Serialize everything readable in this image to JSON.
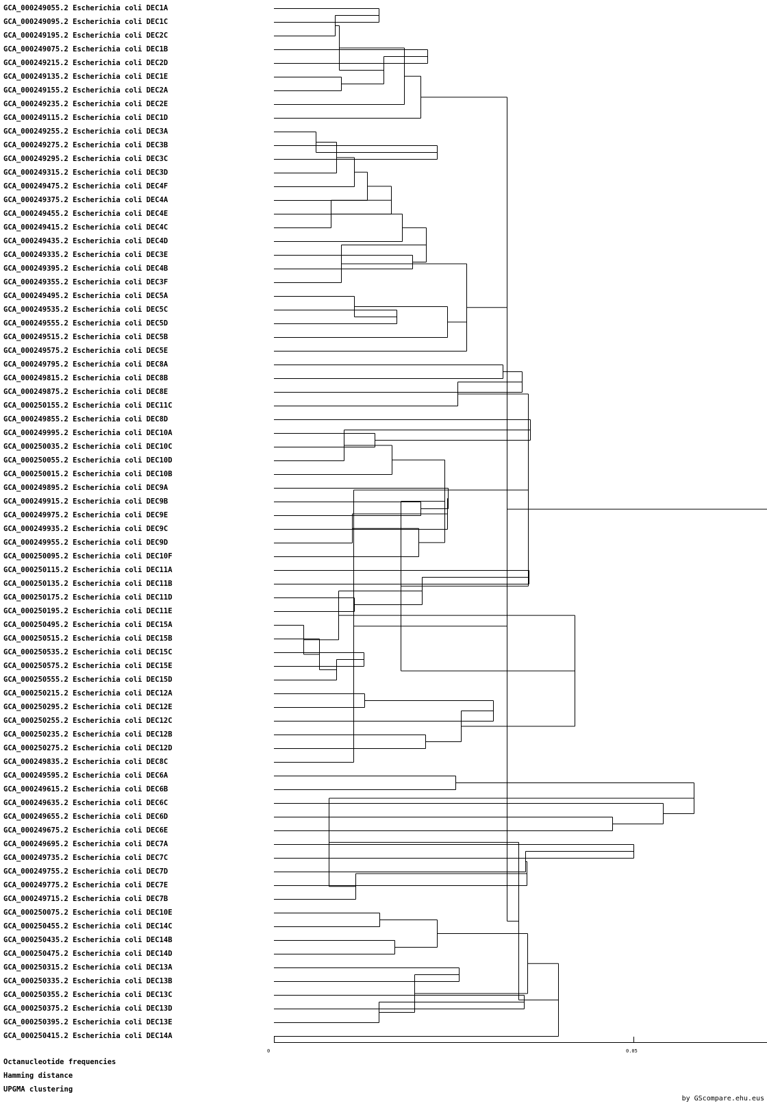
{
  "leaves": [
    "GCA_000249055.2 Escherichia coli DEC1A",
    "GCA_000249095.2 Escherichia coli DEC1C",
    "GCA_000249195.2 Escherichia coli DEC2C",
    "GCA_000249075.2 Escherichia coli DEC1B",
    "GCA_000249215.2 Escherichia coli DEC2D",
    "GCA_000249135.2 Escherichia coli DEC1E",
    "GCA_000249155.2 Escherichia coli DEC2A",
    "GCA_000249235.2 Escherichia coli DEC2E",
    "GCA_000249115.2 Escherichia coli DEC1D",
    "GCA_000249255.2 Escherichia coli DEC3A",
    "GCA_000249275.2 Escherichia coli DEC3B",
    "GCA_000249295.2 Escherichia coli DEC3C",
    "GCA_000249315.2 Escherichia coli DEC3D",
    "GCA_000249475.2 Escherichia coli DEC4F",
    "GCA_000249375.2 Escherichia coli DEC4A",
    "GCA_000249455.2 Escherichia coli DEC4E",
    "GCA_000249415.2 Escherichia coli DEC4C",
    "GCA_000249435.2 Escherichia coli DEC4D",
    "GCA_000249335.2 Escherichia coli DEC3E",
    "GCA_000249395.2 Escherichia coli DEC4B",
    "GCA_000249355.2 Escherichia coli DEC3F",
    "GCA_000249495.2 Escherichia coli DEC5A",
    "GCA_000249535.2 Escherichia coli DEC5C",
    "GCA_000249555.2 Escherichia coli DEC5D",
    "GCA_000249515.2 Escherichia coli DEC5B",
    "GCA_000249575.2 Escherichia coli DEC5E",
    "GCA_000249795.2 Escherichia coli DEC8A",
    "GCA_000249815.2 Escherichia coli DEC8B",
    "GCA_000249875.2 Escherichia coli DEC8E",
    "GCA_000250155.2 Escherichia coli DEC11C",
    "GCA_000249855.2 Escherichia coli DEC8D",
    "GCA_000249995.2 Escherichia coli DEC10A",
    "GCA_000250035.2 Escherichia coli DEC10C",
    "GCA_000250055.2 Escherichia coli DEC10D",
    "GCA_000250015.2 Escherichia coli DEC10B",
    "GCA_000249895.2 Escherichia coli DEC9A",
    "GCA_000249915.2 Escherichia coli DEC9B",
    "GCA_000249975.2 Escherichia coli DEC9E",
    "GCA_000249935.2 Escherichia coli DEC9C",
    "GCA_000249955.2 Escherichia coli DEC9D",
    "GCA_000250095.2 Escherichia coli DEC10F",
    "GCA_000250115.2 Escherichia coli DEC11A",
    "GCA_000250135.2 Escherichia coli DEC11B",
    "GCA_000250175.2 Escherichia coli DEC11D",
    "GCA_000250195.2 Escherichia coli DEC11E",
    "GCA_000250495.2 Escherichia coli DEC15A",
    "GCA_000250515.2 Escherichia coli DEC15B",
    "GCA_000250535.2 Escherichia coli DEC15C",
    "GCA_000250575.2 Escherichia coli DEC15E",
    "GCA_000250555.2 Escherichia coli DEC15D",
    "GCA_000250215.2 Escherichia coli DEC12A",
    "GCA_000250295.2 Escherichia coli DEC12E",
    "GCA_000250255.2 Escherichia coli DEC12C",
    "GCA_000250235.2 Escherichia coli DEC12B",
    "GCA_000250275.2 Escherichia coli DEC12D",
    "GCA_000249835.2 Escherichia coli DEC8C",
    "GCA_000249595.2 Escherichia coli DEC6A",
    "GCA_000249615.2 Escherichia coli DEC6B",
    "GCA_000249635.2 Escherichia coli DEC6C",
    "GCA_000249655.2 Escherichia coli DEC6D",
    "GCA_000249675.2 Escherichia coli DEC6E",
    "GCA_000249695.2 Escherichia coli DEC7A",
    "GCA_000249735.2 Escherichia coli DEC7C",
    "GCA_000249755.2 Escherichia coli DEC7D",
    "GCA_000249775.2 Escherichia coli DEC7E",
    "GCA_000249715.2 Escherichia coli DEC7B",
    "GCA_000250075.2 Escherichia coli DEC10E",
    "GCA_000250455.2 Escherichia coli DEC14C",
    "GCA_000250435.2 Escherichia coli DEC14B",
    "GCA_000250475.2 Escherichia coli DEC14D",
    "GCA_000250315.2 Escherichia coli DEC13A",
    "GCA_000250335.2 Escherichia coli DEC13B",
    "GCA_000250355.2 Escherichia coli DEC13C",
    "GCA_000250375.2 Escherichia coli DEC13D",
    "GCA_000250395.2 Escherichia coli DEC13E",
    "GCA_000250415.2 Escherichia coli DEC14A"
  ],
  "tree": [
    [
      [
        [
          [
            [
              0,
              1
            ],
            2
          ],
          [
            [
              3,
              4
            ],
            [
              5,
              6
            ]
          ]
        ],
        7
      ],
      8
    ],
    [
      [
        [
          [
            [
              [
                [
                  [
                    [
                      [
                        9,
                        [
                          10,
                          11
                        ]
                      ],
                      12
                    ],
                    13
                  ],
                  14
                ],
                15
              ],
              16
            ],
            17
          ],
          [
            18,
            19
          ]
        ],
        20
      ],
      [
        [
          21,
          [
            22,
            23
          ]
        ],
        24
      ],
      25
    ],
    [
      [
        [
          [
            [
              26,
              27
            ],
            28
          ],
          29
        ],
        [
          [
            [
              [
                [
                  30,
                  [
                    31,
                    32
                  ]
                ],
                33
              ],
              34
            ],
            [
              [
                [
                  [
                    35,
                    [
                      36,
                      37
                    ]
                  ],
                  38
                ],
                39
              ],
              40
            ]
          ],
          [
            [
              [
                [
                  41,
                  42
                ],
                [
                  43,
                  44
                ]
              ],
              [
                45,
                [
                  46,
                  [
                    [
                      47,
                      48
                    ],
                    49
                  ]
                ]
              ]
            ],
            [
              [
                [
                  50,
                  51
                ],
                52
              ],
              [
                53,
                54
              ]
            ]
          ]
        ]
      ],
      55
    ],
    [
      [
        [
          [
            56,
            57
          ],
          [
            58,
            [
              59,
              60
            ]
          ]
        ],
        [
          [
            [
              [
                61,
                62
              ],
              63
            ],
            64
          ],
          65
        ]
      ],
      [
        [
          [
            [
              66,
              67
            ],
            [
              68,
              69
            ]
          ],
          [
            [
              70,
              71
            ],
            [
              [
                72,
                73
              ],
              74
            ]
          ]
        ],
        75
      ]
    ]
  ],
  "scale": {
    "ticks": [
      "0",
      "0.05"
    ]
  },
  "footer": {
    "line1": "Octanucleotide frequencies",
    "line2": "Hamming distance",
    "line3": "UPGMA clustering",
    "credit": "by GScompare.ehu.eus"
  }
}
